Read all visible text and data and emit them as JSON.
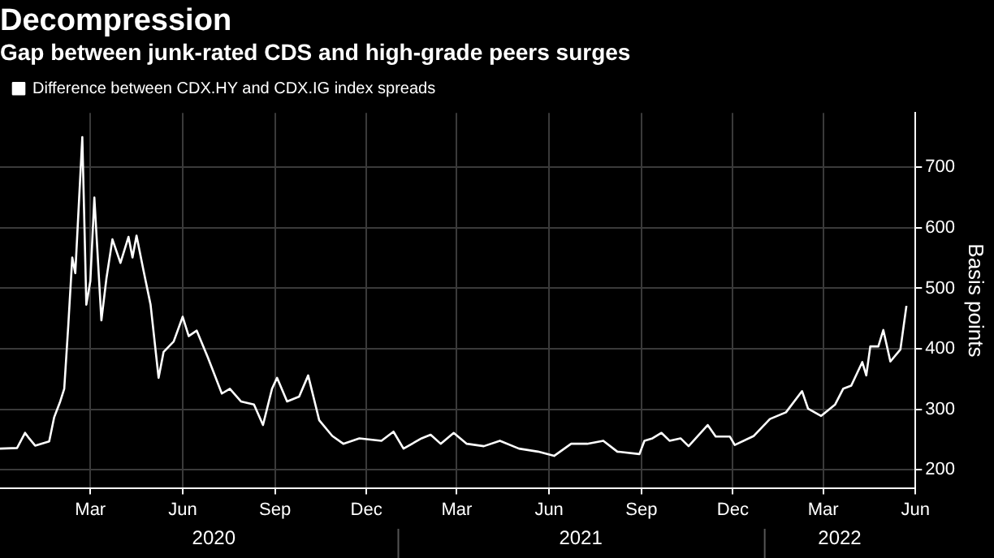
{
  "chart_data": {
    "type": "line",
    "title": "Decompression",
    "subtitle": "Gap between junk-rated CDS and high-grade peers surges",
    "ylabel": "Basis points",
    "x": [
      "2019-12-02",
      "2019-12-19",
      "2019-12-27",
      "2019-12-31",
      "2020-01-06",
      "2020-01-20",
      "2020-01-25",
      "2020-01-31",
      "2020-02-04",
      "2020-02-08",
      "2020-02-12",
      "2020-02-15",
      "2020-02-22",
      "2020-02-26",
      "2020-03-01",
      "2020-03-05",
      "2020-03-12",
      "2020-03-17",
      "2020-03-23",
      "2020-03-31",
      "2020-04-08",
      "2020-04-12",
      "2020-04-16",
      "2020-04-23",
      "2020-04-30",
      "2020-05-08",
      "2020-05-13",
      "2020-05-23",
      "2020-06-01",
      "2020-06-07",
      "2020-06-15",
      "2020-06-26",
      "2020-07-10",
      "2020-07-18",
      "2020-07-29",
      "2020-08-11",
      "2020-08-20",
      "2020-08-29",
      "2020-09-03",
      "2020-09-13",
      "2020-09-25",
      "2020-10-04",
      "2020-10-15",
      "2020-10-28",
      "2020-11-08",
      "2020-11-24",
      "2020-12-16",
      "2020-12-28",
      "2021-01-07",
      "2021-01-25",
      "2021-02-03",
      "2021-02-13",
      "2021-02-26",
      "2021-03-11",
      "2021-03-28",
      "2021-04-13",
      "2021-05-02",
      "2021-05-21",
      "2021-06-06",
      "2021-06-23",
      "2021-07-09",
      "2021-07-25",
      "2021-08-08",
      "2021-08-30",
      "2021-09-04",
      "2021-09-12",
      "2021-09-21",
      "2021-09-29",
      "2021-10-10",
      "2021-10-18",
      "2021-11-06",
      "2021-11-14",
      "2021-11-28",
      "2021-12-03",
      "2021-12-22",
      "2022-01-07",
      "2022-01-23",
      "2022-02-08",
      "2022-02-14",
      "2022-02-27",
      "2022-03-13",
      "2022-03-21",
      "2022-03-29",
      "2022-04-09",
      "2022-04-13",
      "2022-04-17",
      "2022-04-25",
      "2022-04-30",
      "2022-05-07",
      "2022-05-17",
      "2022-05-23"
    ],
    "series": [
      {
        "name": "Difference between CDX.HY and CDX.IG index spreads",
        "color": "#ffffff",
        "values": [
          235,
          236,
          261,
          252,
          240,
          247,
          287,
          313,
          334,
          438,
          551,
          525,
          750,
          473,
          512,
          650,
          447,
          516,
          581,
          542,
          585,
          551,
          587,
          529,
          473,
          352,
          395,
          412,
          453,
          421,
          430,
          386,
          326,
          334,
          313,
          308,
          274,
          334,
          352,
          313,
          321,
          356,
          282,
          256,
          243,
          252,
          248,
          263,
          235,
          252,
          258,
          243,
          261,
          243,
          239,
          248,
          235,
          230,
          223,
          243,
          243,
          248,
          230,
          226,
          248,
          252,
          261,
          248,
          252,
          239,
          274,
          255,
          255,
          241,
          256,
          284,
          295,
          330,
          301,
          289,
          308,
          334,
          339,
          378,
          356,
          404,
          404,
          431,
          379,
          399,
          471
        ]
      }
    ],
    "xlim": [
      "2019-12-02",
      "2022-06-01"
    ],
    "xticks": [
      {
        "value": "2020-03-01",
        "label": "Mar"
      },
      {
        "value": "2020-06-01",
        "label": "Jun"
      },
      {
        "value": "2020-09-01",
        "label": "Sep"
      },
      {
        "value": "2020-12-01",
        "label": "Dec"
      },
      {
        "value": "2021-03-01",
        "label": "Mar"
      },
      {
        "value": "2021-06-01",
        "label": "Jun"
      },
      {
        "value": "2021-09-01",
        "label": "Sep"
      },
      {
        "value": "2021-12-01",
        "label": "Dec"
      },
      {
        "value": "2022-03-01",
        "label": "Mar"
      },
      {
        "value": "2022-06-01",
        "label": "Jun"
      }
    ],
    "ylim": [
      170,
      790
    ],
    "yticks": [
      200,
      300,
      400,
      500,
      600,
      700
    ],
    "annotations": [
      "2020",
      "2021",
      "2022"
    ],
    "grid": true,
    "legend": "top left",
    "marker": "none",
    "line_style": "solid"
  }
}
